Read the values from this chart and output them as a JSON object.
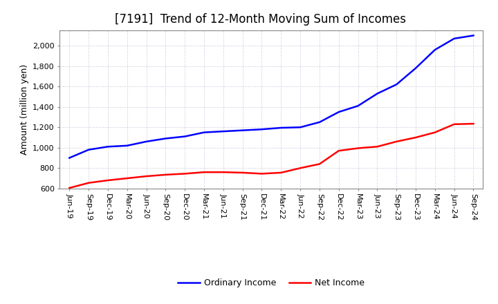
{
  "title": "[7191]  Trend of 12-Month Moving Sum of Incomes",
  "ylabel": "Amount (million yen)",
  "ylim": [
    600,
    2150
  ],
  "yticks": [
    600,
    800,
    1000,
    1200,
    1400,
    1600,
    1800,
    2000
  ],
  "background_color": "#ffffff",
  "plot_bg_color": "#ffffff",
  "grid_color": "#aaaacc",
  "x_labels": [
    "Jun-19",
    "Sep-19",
    "Dec-19",
    "Mar-20",
    "Jun-20",
    "Sep-20",
    "Dec-20",
    "Mar-21",
    "Jun-21",
    "Sep-21",
    "Dec-21",
    "Mar-22",
    "Jun-22",
    "Sep-22",
    "Dec-22",
    "Mar-23",
    "Jun-23",
    "Sep-23",
    "Dec-23",
    "Mar-24",
    "Jun-24",
    "Sep-24"
  ],
  "ordinary_income": [
    900,
    980,
    1010,
    1020,
    1060,
    1090,
    1110,
    1150,
    1160,
    1170,
    1180,
    1195,
    1200,
    1250,
    1350,
    1410,
    1530,
    1620,
    1780,
    1960,
    2070,
    2100
  ],
  "net_income": [
    605,
    655,
    680,
    700,
    720,
    735,
    745,
    760,
    760,
    755,
    745,
    755,
    800,
    840,
    970,
    995,
    1010,
    1060,
    1100,
    1150,
    1230,
    1235
  ],
  "ordinary_color": "#0000ff",
  "net_color": "#ff0000",
  "line_width": 1.8,
  "title_fontsize": 12,
  "legend_fontsize": 9,
  "tick_fontsize": 8,
  "ylabel_fontsize": 9
}
